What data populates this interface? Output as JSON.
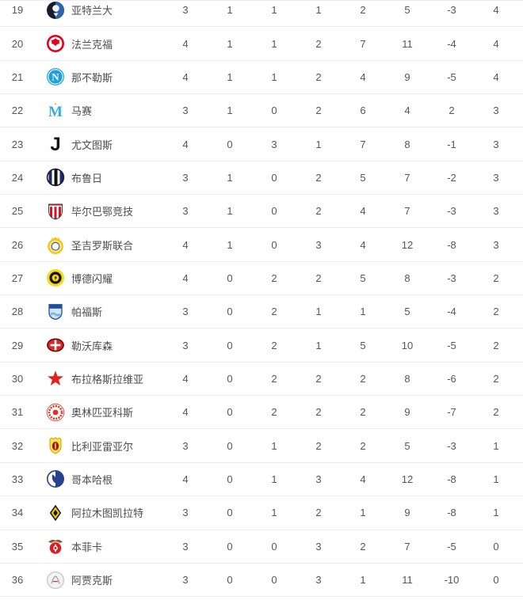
{
  "colors": {
    "background": "#ffffff",
    "divider": "#ececec",
    "rank_text": "#565656",
    "team_text": "#4d4d4d",
    "stat_text": "#565656"
  },
  "table": {
    "stat_keys": [
      "played",
      "wins",
      "draws",
      "losses",
      "goals-for",
      "goals-against",
      "goal-diff",
      "points"
    ],
    "rows": [
      {
        "rank": "19",
        "name": "亚特兰大",
        "crest": "atalanta",
        "stats": [
          "3",
          "1",
          "1",
          "1",
          "2",
          "5",
          "-3",
          "4"
        ]
      },
      {
        "rank": "20",
        "name": "法兰克福",
        "crest": "frankfurt",
        "stats": [
          "4",
          "1",
          "1",
          "2",
          "7",
          "11",
          "-4",
          "4"
        ]
      },
      {
        "rank": "21",
        "name": "那不勒斯",
        "crest": "napoli",
        "stats": [
          "4",
          "1",
          "1",
          "2",
          "4",
          "9",
          "-5",
          "4"
        ]
      },
      {
        "rank": "22",
        "name": "马赛",
        "crest": "marseille",
        "stats": [
          "3",
          "1",
          "0",
          "2",
          "6",
          "4",
          "2",
          "3"
        ]
      },
      {
        "rank": "23",
        "name": "尤文图斯",
        "crest": "juventus",
        "stats": [
          "4",
          "0",
          "3",
          "1",
          "7",
          "8",
          "-1",
          "3"
        ]
      },
      {
        "rank": "24",
        "name": "布鲁日",
        "crest": "brugge",
        "stats": [
          "3",
          "1",
          "0",
          "2",
          "5",
          "7",
          "-2",
          "3"
        ]
      },
      {
        "rank": "25",
        "name": "毕尔巴鄂竞技",
        "crest": "athletic",
        "stats": [
          "3",
          "1",
          "0",
          "2",
          "4",
          "7",
          "-3",
          "3"
        ]
      },
      {
        "rank": "26",
        "name": "圣吉罗斯联合",
        "crest": "union-sg",
        "stats": [
          "4",
          "1",
          "0",
          "3",
          "4",
          "12",
          "-8",
          "3"
        ]
      },
      {
        "rank": "27",
        "name": "博德闪耀",
        "crest": "bodo-glimt",
        "stats": [
          "4",
          "0",
          "2",
          "2",
          "5",
          "8",
          "-3",
          "2"
        ]
      },
      {
        "rank": "28",
        "name": "帕福斯",
        "crest": "pafos",
        "stats": [
          "3",
          "0",
          "2",
          "1",
          "1",
          "5",
          "-4",
          "2"
        ]
      },
      {
        "rank": "29",
        "name": "勒沃库森",
        "crest": "leverkusen",
        "stats": [
          "3",
          "0",
          "2",
          "1",
          "5",
          "10",
          "-5",
          "2"
        ]
      },
      {
        "rank": "30",
        "name": "布拉格斯拉维亚",
        "crest": "slavia-prague",
        "stats": [
          "4",
          "0",
          "2",
          "2",
          "2",
          "8",
          "-6",
          "2"
        ]
      },
      {
        "rank": "31",
        "name": "奥林匹亚科斯",
        "crest": "olympiacos",
        "stats": [
          "4",
          "0",
          "2",
          "2",
          "2",
          "9",
          "-7",
          "2"
        ]
      },
      {
        "rank": "32",
        "name": "比利亚雷亚尔",
        "crest": "villarreal",
        "stats": [
          "3",
          "0",
          "1",
          "2",
          "2",
          "5",
          "-3",
          "1"
        ]
      },
      {
        "rank": "33",
        "name": "哥本哈根",
        "crest": "copenhagen",
        "stats": [
          "4",
          "0",
          "1",
          "3",
          "4",
          "12",
          "-8",
          "1"
        ]
      },
      {
        "rank": "34",
        "name": "阿拉木图凯拉特",
        "crest": "kairat",
        "stats": [
          "3",
          "0",
          "1",
          "2",
          "1",
          "9",
          "-8",
          "1"
        ]
      },
      {
        "rank": "35",
        "name": "本菲卡",
        "crest": "benfica",
        "stats": [
          "3",
          "0",
          "0",
          "3",
          "2",
          "7",
          "-5",
          "0"
        ]
      },
      {
        "rank": "36",
        "name": "阿贾克斯",
        "crest": "ajax",
        "stats": [
          "3",
          "0",
          "0",
          "3",
          "1",
          "11",
          "-10",
          "0"
        ]
      }
    ]
  }
}
